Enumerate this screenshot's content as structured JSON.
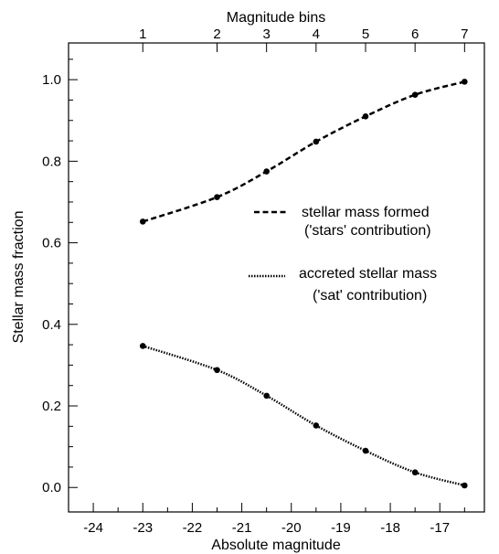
{
  "chart_data": {
    "type": "line",
    "xlabel": "Absolute magnitude",
    "ylabel": "Stellar mass fraction",
    "top_axis_label": "Magnitude bins",
    "xlim": [
      -24.5,
      -16.1
    ],
    "ylim": [
      -0.06,
      1.09
    ],
    "x_ticks": [
      -24,
      -23,
      -22,
      -21,
      -20,
      -19,
      -18,
      -17
    ],
    "x_tick_labels": [
      "-24",
      "-23",
      "-22",
      "-21",
      "-20",
      "-19",
      "-18",
      "-17"
    ],
    "y_ticks": [
      0.0,
      0.2,
      0.4,
      0.6,
      0.8,
      1.0
    ],
    "y_tick_labels": [
      "0.0",
      "0.2",
      "0.4",
      "0.6",
      "0.8",
      "1.0"
    ],
    "top_ticks": [
      -23,
      -21.5,
      -20.5,
      -19.5,
      -18.5,
      -17.5,
      -16.5
    ],
    "top_tick_labels": [
      "1",
      "2",
      "3",
      "4",
      "5",
      "6",
      "7"
    ],
    "x": [
      -23,
      -21.5,
      -20.5,
      -19.5,
      -18.5,
      -17.5,
      -16.5
    ],
    "series": [
      {
        "legend_lines": [
          "stellar mass formed",
          "('stars' contribution)"
        ],
        "style": "dashed",
        "color": "#000000",
        "values": [
          0.652,
          0.712,
          0.775,
          0.848,
          0.91,
          0.963,
          0.995
        ]
      },
      {
        "legend_lines": [
          "accreted stellar mass",
          "('sat' contribution)"
        ],
        "style": "dotted",
        "color": "#000000",
        "values": [
          0.347,
          0.288,
          0.225,
          0.152,
          0.09,
          0.037,
          0.005
        ]
      }
    ],
    "legend": "right-center",
    "grid": false
  }
}
